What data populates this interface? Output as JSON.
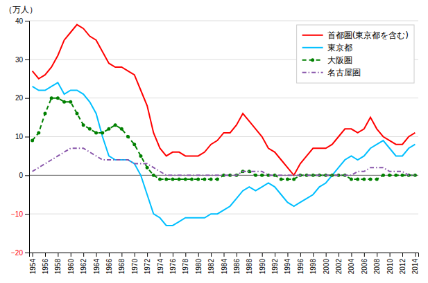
{
  "chart_data": {
    "type": "line",
    "y_label": "（万人）",
    "x": [
      1954,
      1955,
      1956,
      1957,
      1958,
      1959,
      1960,
      1961,
      1962,
      1963,
      1964,
      1965,
      1966,
      1967,
      1968,
      1969,
      1970,
      1971,
      1972,
      1973,
      1974,
      1975,
      1976,
      1977,
      1978,
      1979,
      1980,
      1981,
      1982,
      1983,
      1984,
      1985,
      1986,
      1987,
      1988,
      1989,
      1990,
      1991,
      1992,
      1993,
      1994,
      1995,
      1996,
      1997,
      1998,
      1999,
      2000,
      2001,
      2002,
      2003,
      2004,
      2005,
      2006,
      2007,
      2008,
      2009,
      2010,
      2011,
      2012,
      2013,
      2014
    ],
    "xlim": [
      1953.5,
      2014.5
    ],
    "xticks": [
      1954,
      1956,
      1958,
      1960,
      1962,
      1964,
      1966,
      1968,
      1970,
      1972,
      1974,
      1976,
      1978,
      1980,
      1982,
      1984,
      1986,
      1988,
      1990,
      1992,
      1994,
      1996,
      1998,
      2000,
      2002,
      2004,
      2006,
      2008,
      2010,
      2012,
      2014
    ],
    "ylim": [
      -20,
      40
    ],
    "yticks": [
      {
        "value": -20,
        "label": "−20"
      },
      {
        "value": -10,
        "label": "−10"
      },
      0,
      10,
      20,
      30,
      40
    ],
    "grid": "y",
    "legend": "upper right",
    "series": [
      {
        "name": "首都圏(東京都を含む)",
        "color": "#ff0000",
        "line_style": "solid",
        "values": [
          27,
          25,
          26,
          28,
          31,
          35,
          37,
          39,
          38,
          36,
          35,
          32,
          29,
          28,
          28,
          27,
          26,
          22,
          18,
          11,
          7,
          5,
          6,
          6,
          5,
          5,
          5,
          6,
          8,
          9,
          11,
          11,
          13,
          16,
          14,
          12,
          10,
          7,
          6,
          4,
          2,
          0,
          3,
          5,
          7,
          7,
          7,
          8,
          10,
          12,
          12,
          11,
          12,
          15,
          12,
          10,
          9,
          8,
          8,
          10,
          11
        ]
      },
      {
        "name": "東京都",
        "color": "#00bfff",
        "line_style": "solid",
        "values": [
          23,
          22,
          22,
          23,
          24,
          21,
          22,
          22,
          21,
          19,
          16,
          10,
          5,
          4,
          4,
          4,
          3,
          0,
          -5,
          -10,
          -11,
          -13,
          -13,
          -12,
          -11,
          -11,
          -11,
          -11,
          -10,
          -10,
          -9,
          -8,
          -6,
          -4,
          -3,
          -4,
          -3,
          -2,
          -3,
          -5,
          -7,
          -8,
          -7,
          -6,
          -5,
          -3,
          -2,
          0,
          2,
          4,
          5,
          4,
          5,
          7,
          8,
          9,
          7,
          5,
          5,
          7,
          8
        ]
      },
      {
        "name": "大阪圏",
        "color": "#008000",
        "line_style": "dashed",
        "marker": "circle",
        "values": [
          9,
          11,
          16,
          20,
          20,
          19,
          19,
          16,
          13,
          12,
          11,
          11,
          12,
          13,
          12,
          10,
          8,
          5,
          2,
          0,
          -1,
          -1,
          -1,
          -1,
          -1,
          -1,
          -1,
          -1,
          -1,
          -1,
          0,
          0,
          0,
          1,
          1,
          0,
          0,
          0,
          0,
          -1,
          -1,
          -1,
          0,
          0,
          0,
          0,
          0,
          0,
          0,
          0,
          -1,
          -1,
          -1,
          -1,
          -1,
          0,
          0,
          0,
          0,
          0,
          0
        ]
      },
      {
        "name": "名古屋圏",
        "color": "#8855aa",
        "line_style": "dashdot",
        "values": [
          1,
          2,
          3,
          4,
          5,
          6,
          7,
          7,
          7,
          6,
          5,
          4,
          4,
          4,
          4,
          4,
          3,
          3,
          3,
          2,
          1,
          0,
          0,
          0,
          0,
          0,
          0,
          0,
          0,
          0,
          0,
          0,
          0,
          1,
          1,
          1,
          1,
          0,
          0,
          0,
          0,
          0,
          0,
          0,
          0,
          0,
          0,
          0,
          0,
          0,
          0,
          1,
          1,
          2,
          2,
          2,
          1,
          1,
          1,
          0,
          0
        ]
      }
    ]
  }
}
